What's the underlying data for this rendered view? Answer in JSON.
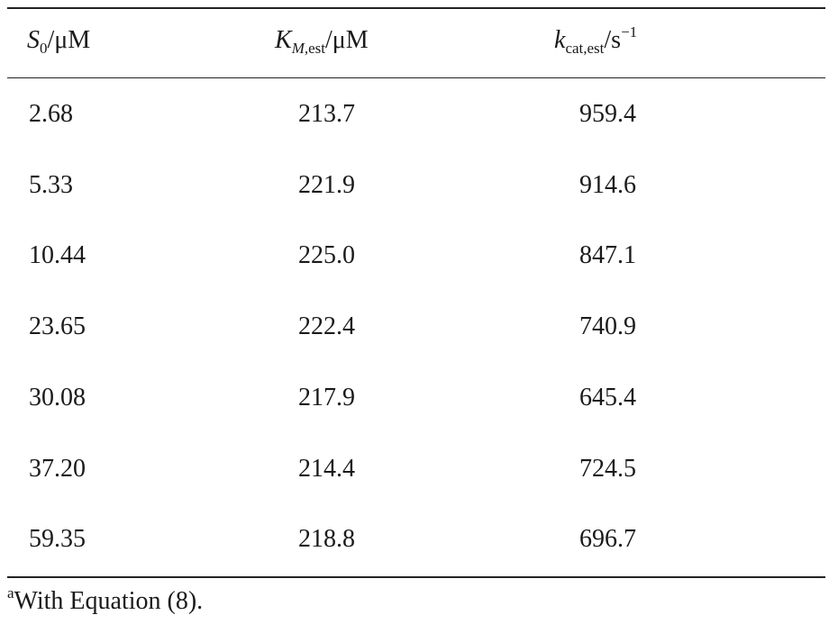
{
  "table": {
    "headers": {
      "col1": {
        "main": "S",
        "sub": "0",
        "unit": "/μM"
      },
      "col2": {
        "main": "K",
        "sub_italic": "M,",
        "sub": "est",
        "unit": "/μM"
      },
      "col3": {
        "main": "k",
        "sub": "cat,est",
        "unit": "/s",
        "sup": "−1"
      }
    },
    "rows": [
      {
        "s0": "2.68",
        "km": "213.7",
        "kcat": "959.4"
      },
      {
        "s0": "5.33",
        "km": "221.9",
        "kcat": "914.6"
      },
      {
        "s0": "10.44",
        "km": "225.0",
        "kcat": "847.1"
      },
      {
        "s0": "23.65",
        "km": "222.4",
        "kcat": "740.9"
      },
      {
        "s0": "30.08",
        "km": "217.9",
        "kcat": "645.4"
      },
      {
        "s0": "37.20",
        "km": "214.4",
        "kcat": "724.5"
      },
      {
        "s0": "59.35",
        "km": "218.8",
        "kcat": "696.7"
      }
    ]
  },
  "footnote": {
    "mark": "a",
    "text": "With Equation (8)."
  }
}
